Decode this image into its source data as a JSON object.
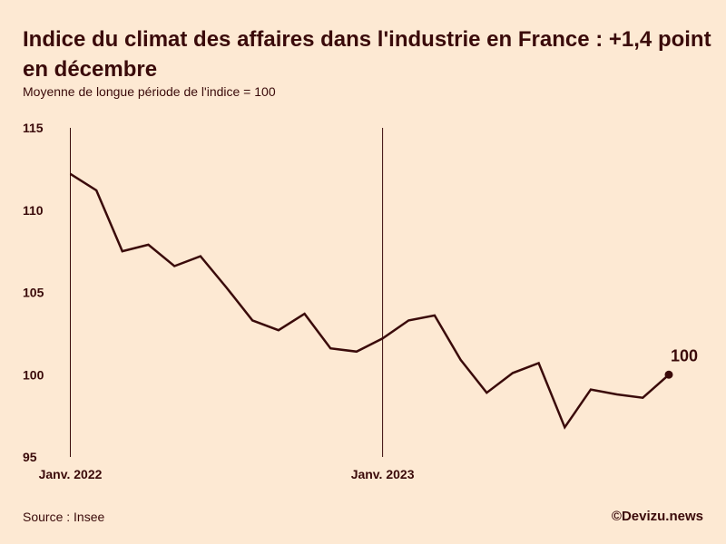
{
  "header": {
    "title": "Indice du climat des affaires dans l'industrie en France : +1,4 point en décembre",
    "subtitle": "Moyenne de longue période de l'indice = 100"
  },
  "footer": {
    "source": "Source : Insee",
    "credit": "©Devizu.news"
  },
  "colors": {
    "background": "#fde9d3",
    "line": "#3a0a0a"
  },
  "chart_data": {
    "type": "line",
    "title": "Indice du climat des affaires dans l'industrie en France : +1,4 point en décembre",
    "subtitle": "Moyenne de longue période de l'indice = 100",
    "xlabel": "",
    "ylabel": "",
    "x": [
      "2022-01",
      "2022-02",
      "2022-03",
      "2022-04",
      "2022-05",
      "2022-06",
      "2022-07",
      "2022-08",
      "2022-09",
      "2022-10",
      "2022-11",
      "2022-12",
      "2023-01",
      "2023-02",
      "2023-03",
      "2023-04",
      "2023-05",
      "2023-06",
      "2023-07",
      "2023-08",
      "2023-09",
      "2023-10",
      "2023-11",
      "2023-12"
    ],
    "series": [
      {
        "name": "Indice du climat des affaires dans l'industrie",
        "values": [
          112.2,
          111.2,
          107.5,
          107.9,
          106.6,
          107.2,
          105.3,
          103.3,
          102.7,
          103.7,
          101.6,
          101.4,
          102.2,
          103.3,
          103.6,
          100.9,
          98.9,
          100.1,
          100.7,
          96.8,
          99.1,
          98.8,
          98.6,
          100.0
        ]
      }
    ],
    "ylim": [
      95,
      115
    ],
    "yticks": [
      95,
      100,
      105,
      110,
      115
    ],
    "xticks": [
      {
        "x": "2022-01",
        "label": "Janv. 2022"
      },
      {
        "x": "2023-01",
        "label": "Janv. 2023"
      }
    ],
    "end_label": "100",
    "grid": false
  }
}
